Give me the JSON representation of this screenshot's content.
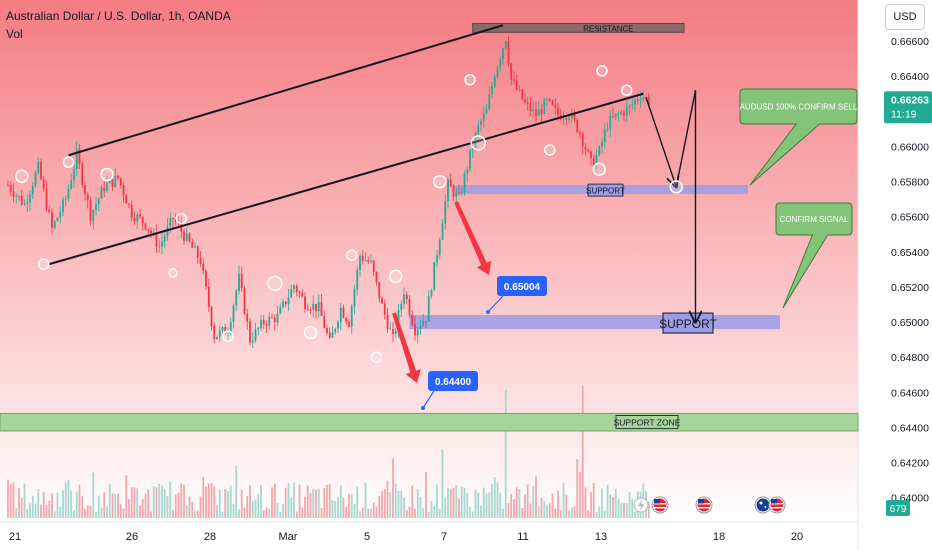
{
  "header": {
    "title": "Australian Dollar / U.S. Dollar, 1h, OANDA",
    "vol_label": "Vol",
    "currency": "USD"
  },
  "colors": {
    "gradient_top": "#f47c82",
    "gradient_bottom": "#ffffff",
    "bull": "#22ab94",
    "bear": "#f23645",
    "vol_bull": "#a6d8cf",
    "vol_bear": "#f4a6ab",
    "support_band": "#9b9be6",
    "support_zone": "#a7d49a",
    "resistance": "#8a6a6a",
    "callout_green": "#83c47a",
    "blue_label": "#2962ff",
    "arrow_red": "#f23645"
  },
  "chart_data": {
    "type": "candlestick",
    "symbol": "AUDUSD",
    "timeframe": "1h",
    "ylim": [
      0.6393,
      0.6672
    ],
    "y_ticks": [
      "0.66600",
      "0.66400",
      "0.66200",
      "0.66000",
      "0.65800",
      "0.65600",
      "0.65400",
      "0.65200",
      "0.65000",
      "0.64800",
      "0.64600",
      "0.64400",
      "0.64200",
      "0.64000"
    ],
    "x_ticks": [
      "21",
      "26",
      "28",
      "Mar",
      "5",
      "7",
      "11",
      "13",
      "18",
      "20"
    ],
    "price_path": [
      [
        0,
        0.6578
      ],
      [
        6,
        0.6567
      ],
      [
        11,
        0.6588
      ],
      [
        16,
        0.6553
      ],
      [
        21,
        0.657
      ],
      [
        25,
        0.6595
      ],
      [
        30,
        0.6561
      ],
      [
        35,
        0.6577
      ],
      [
        40,
        0.6582
      ],
      [
        45,
        0.6562
      ],
      [
        50,
        0.6556
      ],
      [
        55,
        0.6543
      ],
      [
        60,
        0.6559
      ],
      [
        65,
        0.6547
      ],
      [
        70,
        0.6535
      ],
      [
        75,
        0.6492
      ],
      [
        80,
        0.6496
      ],
      [
        84,
        0.6525
      ],
      [
        88,
        0.649
      ],
      [
        93,
        0.65
      ],
      [
        98,
        0.6503
      ],
      [
        104,
        0.6521
      ],
      [
        108,
        0.6511
      ],
      [
        113,
        0.6508
      ],
      [
        117,
        0.6488
      ],
      [
        121,
        0.6508
      ],
      [
        124,
        0.65
      ],
      [
        128,
        0.6538
      ],
      [
        132,
        0.6533
      ],
      [
        136,
        0.6509
      ],
      [
        140,
        0.649
      ],
      [
        144,
        0.6518
      ],
      [
        148,
        0.6496
      ],
      [
        152,
        0.6503
      ],
      [
        156,
        0.654
      ],
      [
        160,
        0.6578
      ],
      [
        164,
        0.657
      ],
      [
        168,
        0.6595
      ],
      [
        171,
        0.6611
      ],
      [
        174,
        0.662
      ],
      [
        177,
        0.6642
      ],
      [
        181,
        0.6662
      ],
      [
        183,
        0.6638
      ],
      [
        188,
        0.6624
      ],
      [
        192,
        0.6618
      ],
      [
        196,
        0.6625
      ],
      [
        200,
        0.6618
      ],
      [
        204,
        0.6619
      ],
      [
        208,
        0.6608
      ],
      [
        212,
        0.659
      ],
      [
        215,
        0.6597
      ],
      [
        218,
        0.6613
      ],
      [
        222,
        0.6618
      ],
      [
        226,
        0.6622
      ],
      [
        230,
        0.663
      ],
      [
        233,
        0.6626
      ]
    ],
    "price_readout": {
      "value": "0.66263",
      "countdown": "11:19"
    },
    "volume_readout": "679",
    "resistance": {
      "label": "RESISTANCE",
      "low": 0.6665,
      "high": 0.667
    },
    "support_zone": {
      "label": "SUPPORT ZONE",
      "low": 0.6438,
      "high": 0.6448
    },
    "support_upper": {
      "label": "SUPPORT",
      "low": 0.6573,
      "high": 0.6578
    },
    "support_main": {
      "label": "SUPPORT",
      "low": 0.6496,
      "high": 0.6504
    },
    "channel_lines": [
      {
        "x1": 22,
        "y1": 0.6595,
        "x2": 180,
        "y2": 0.6669
      },
      {
        "x1": 15,
        "y1": 0.6533,
        "x2": 231,
        "y2": 0.663
      }
    ],
    "forecast_path": [
      [
        232,
        0.6628
      ],
      [
        243,
        0.6577
      ],
      [
        250,
        0.6632
      ],
      [
        250,
        0.65
      ]
    ],
    "price_labels": [
      {
        "text": "0.65004",
        "value": 0.65004
      },
      {
        "text": "0.64400",
        "value": 0.644
      }
    ],
    "callouts": [
      {
        "text": "AUDUSD 100% CONFIRM SELL"
      },
      {
        "text": "CONFIRM SIGNAL"
      }
    ]
  }
}
